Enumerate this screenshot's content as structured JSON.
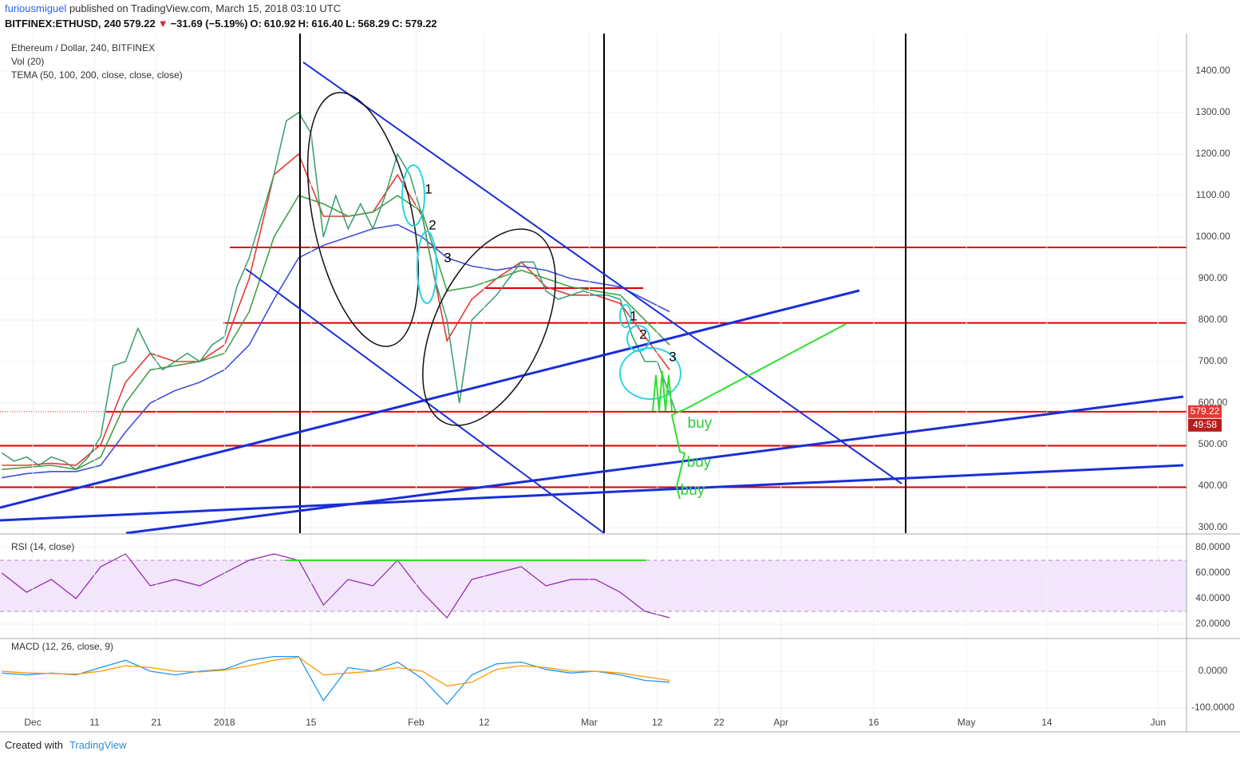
{
  "header": {
    "author": "furiousmiguel",
    "published": "published on TradingView.com, March 15, 2018 03:10 UTC",
    "symbol": "BITFINEX:ETHUSD, 240",
    "price": "579.22",
    "arrow": "▼",
    "change": "−31.69 (−5.19%)",
    "open_label": "O:",
    "open": "610.92",
    "high_label": "H:",
    "high": "616.40",
    "low_label": "L:",
    "low": "568.29",
    "close_label": "C:",
    "close": "579.22"
  },
  "footer": {
    "created": "Created with",
    "brand": "TradingView"
  },
  "chart_data": [
    {
      "type": "line",
      "title": "Ethereum / Dollar, 240, BITFINEX",
      "indicators": [
        "Vol (20)",
        "TEMA (50, 100, 200, close, close, close)"
      ],
      "x": [
        -5,
        -3,
        -1,
        1,
        3,
        5,
        7,
        9,
        11,
        13,
        15,
        17,
        19,
        21,
        23,
        25,
        27,
        29,
        31,
        33,
        35,
        37,
        39,
        41,
        43,
        45,
        47,
        49,
        51,
        53,
        55,
        57,
        59,
        61,
        63,
        65,
        67,
        69,
        71,
        73,
        75,
        77,
        79,
        81,
        83,
        85,
        87,
        89,
        91,
        93,
        95,
        97,
        99,
        101,
        103,
        104
      ],
      "values": [
        480,
        460,
        470,
        450,
        470,
        460,
        440,
        470,
        520,
        690,
        700,
        780,
        720,
        680,
        700,
        720,
        700,
        740,
        760,
        880,
        950,
        1050,
        1150,
        1280,
        1300,
        1250,
        1000,
        1100,
        1020,
        1080,
        1020,
        1100,
        1200,
        1150,
        1050,
        900,
        800,
        600,
        800,
        830,
        860,
        900,
        940,
        940,
        870,
        850,
        860,
        870,
        860,
        860,
        850,
        760,
        700,
        700,
        620,
        579.22
      ],
      "color": "#3a9b6a",
      "series": [
        {
          "color": "#e53935",
          "x": [
            -5,
            -1,
            3,
            7,
            11,
            15,
            19,
            23,
            27,
            31,
            35,
            39,
            43,
            47,
            51,
            55,
            59,
            63,
            67,
            71,
            75,
            79,
            83,
            87,
            91,
            95,
            99,
            103
          ],
          "values": [
            450,
            450,
            455,
            450,
            500,
            650,
            720,
            700,
            700,
            740,
            900,
            1150,
            1200,
            1050,
            1050,
            1060,
            1150,
            1050,
            750,
            850,
            900,
            940,
            880,
            860,
            860,
            840,
            760,
            680
          ]
        },
        {
          "color": "#43a047",
          "x": [
            -5,
            -1,
            3,
            7,
            11,
            15,
            19,
            23,
            27,
            31,
            35,
            39,
            43,
            47,
            51,
            55,
            59,
            63,
            67,
            71,
            75,
            79,
            83,
            87,
            91,
            95,
            99,
            103
          ],
          "values": [
            440,
            445,
            450,
            440,
            470,
            600,
            680,
            690,
            700,
            720,
            820,
            1000,
            1100,
            1080,
            1050,
            1060,
            1100,
            1060,
            870,
            880,
            900,
            920,
            900,
            880,
            870,
            860,
            800,
            740
          ]
        },
        {
          "color": "#3f51d8",
          "x": [
            -5,
            -1,
            3,
            7,
            11,
            15,
            19,
            23,
            27,
            31,
            35,
            39,
            43,
            47,
            51,
            55,
            59,
            63,
            67,
            71,
            75,
            79,
            83,
            87,
            91,
            95,
            99,
            103
          ],
          "values": [
            420,
            430,
            435,
            435,
            450,
            530,
            600,
            630,
            650,
            680,
            740,
            850,
            950,
            980,
            1000,
            1020,
            1030,
            1000,
            950,
            930,
            920,
            930,
            920,
            900,
            890,
            880,
            850,
            820
          ]
        }
      ],
      "levels": [
        975,
        877,
        793,
        579,
        497,
        397
      ],
      "level_color": "#e00000",
      "last_price": 579.22,
      "countdown": "49:58",
      "price_tag_color": "#e53935",
      "annotations": [
        "1",
        "2",
        "3",
        "1",
        "2",
        "3",
        "buy",
        "buy",
        "buy"
      ],
      "xlim": [
        -5.3,
        186.6
      ],
      "ylim": [
        286.5,
        1490.4
      ],
      "yticks": [
        {
          "value": 300,
          "label": "300.00"
        },
        {
          "value": 400,
          "label": "400.00"
        },
        {
          "value": 500,
          "label": "500.00"
        },
        {
          "value": 600,
          "label": "600.00"
        },
        {
          "value": 700,
          "label": "700.00"
        },
        {
          "value": 800,
          "label": "800.00"
        },
        {
          "value": 900,
          "label": "900.00"
        },
        {
          "value": 1000,
          "label": "1000.00"
        },
        {
          "value": 1100,
          "label": "1100.00"
        },
        {
          "value": 1200,
          "label": "1200.00"
        },
        {
          "value": 1300,
          "label": "1300.00"
        },
        {
          "value": 1400,
          "label": "1400.00"
        }
      ],
      "grid": true
    },
    {
      "type": "line",
      "title": "RSI (14, close)",
      "x": [
        -5,
        -1,
        3,
        7,
        11,
        15,
        19,
        23,
        27,
        31,
        35,
        39,
        43,
        47,
        51,
        55,
        59,
        63,
        67,
        71,
        75,
        79,
        83,
        87,
        91,
        95,
        99,
        103
      ],
      "values": [
        60,
        45,
        55,
        40,
        65,
        75,
        50,
        55,
        50,
        60,
        70,
        75,
        70,
        35,
        55,
        50,
        70,
        45,
        25,
        55,
        60,
        65,
        50,
        55,
        55,
        45,
        30,
        25
      ],
      "color": "#8e24aa",
      "bands": [
        30,
        70
      ],
      "band_color": "#f3e5fb",
      "xlim": [
        -5.3,
        186.6
      ],
      "ylim": [
        8.75,
        90
      ],
      "yticks": [
        {
          "value": 20,
          "label": "20.0000"
        },
        {
          "value": 40,
          "label": "40.0000"
        },
        {
          "value": 60,
          "label": "60.0000"
        },
        {
          "value": 80,
          "label": "80.0000"
        }
      ],
      "grid": true
    },
    {
      "type": "line",
      "title": "MACD (12, 26, close, 9)",
      "series": [
        {
          "color": "#2196f3",
          "x": [
            -5,
            -1,
            3,
            7,
            11,
            15,
            19,
            23,
            27,
            31,
            35,
            39,
            43,
            47,
            51,
            55,
            59,
            63,
            67,
            71,
            75,
            79,
            83,
            87,
            91,
            95,
            99,
            103
          ],
          "values": [
            -5,
            -10,
            -5,
            -10,
            10,
            30,
            0,
            -10,
            0,
            5,
            30,
            40,
            40,
            -80,
            10,
            0,
            25,
            -20,
            -90,
            -10,
            20,
            25,
            5,
            -5,
            0,
            -10,
            -25,
            -30
          ]
        },
        {
          "color": "#ff9800",
          "x": [
            -5,
            -1,
            3,
            7,
            11,
            15,
            19,
            23,
            27,
            31,
            35,
            39,
            43,
            47,
            51,
            55,
            59,
            63,
            67,
            71,
            75,
            79,
            83,
            87,
            91,
            95,
            99,
            103
          ],
          "values": [
            0,
            -5,
            -6,
            -8,
            0,
            15,
            10,
            0,
            -2,
            3,
            15,
            30,
            38,
            -10,
            -5,
            0,
            10,
            0,
            -40,
            -30,
            5,
            15,
            10,
            0,
            0,
            -5,
            -15,
            -25
          ]
        }
      ],
      "xlim": [
        -5.3,
        186.6
      ],
      "ylim": [
        -139.1,
        89.1
      ],
      "yticks": [
        {
          "value": -100,
          "label": "-100.0000"
        },
        {
          "value": 0,
          "label": "0.0000"
        }
      ],
      "xticks": [
        {
          "value": 0,
          "label": "Dec"
        },
        {
          "value": 10,
          "label": "11"
        },
        {
          "value": 20,
          "label": "21"
        },
        {
          "value": 31,
          "label": "2018"
        },
        {
          "value": 45,
          "label": "15"
        },
        {
          "value": 62,
          "label": "Feb"
        },
        {
          "value": 73,
          "label": "12"
        },
        {
          "value": 90,
          "label": "Mar"
        },
        {
          "value": 101,
          "label": "12"
        },
        {
          "value": 111,
          "label": "22"
        },
        {
          "value": 121,
          "label": "Apr"
        },
        {
          "value": 136,
          "label": "16"
        },
        {
          "value": 151,
          "label": "May"
        },
        {
          "value": 164,
          "label": "14"
        },
        {
          "value": 182,
          "label": "Jun"
        }
      ],
      "grid": true
    }
  ]
}
